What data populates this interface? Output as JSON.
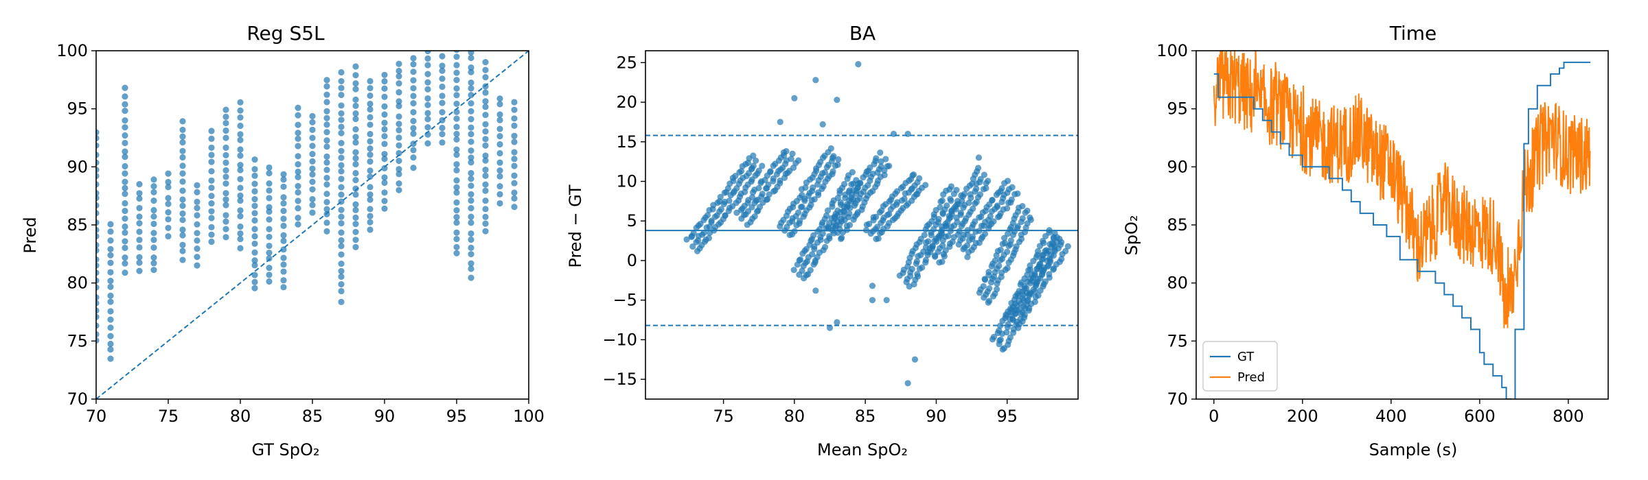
{
  "chart_data": [
    {
      "type": "scatter",
      "title": "Reg S5L",
      "xlabel": "GT SpO₂",
      "ylabel": "Pred",
      "xlim": [
        70,
        100
      ],
      "ylim": [
        70,
        100
      ],
      "xticks": [
        70,
        75,
        80,
        85,
        90,
        95,
        100
      ],
      "yticks": [
        70,
        75,
        80,
        85,
        90,
        95,
        100
      ],
      "grid": false,
      "reference_line": {
        "label": "",
        "x": [
          70,
          100
        ],
        "y": [
          70,
          100
        ],
        "style": "dashed"
      },
      "color": "#1f77b4",
      "columns": [
        {
          "x": 70,
          "y_min": 75,
          "y_max": 93
        },
        {
          "x": 71,
          "y_min": 73.5,
          "y_max": 85
        },
        {
          "x": 72,
          "y_min": 81,
          "y_max": 96.7
        },
        {
          "x": 73,
          "y_min": 81,
          "y_max": 88.5
        },
        {
          "x": 74,
          "y_min": 81,
          "y_max": 89
        },
        {
          "x": 75,
          "y_min": 84,
          "y_max": 89.5
        },
        {
          "x": 76,
          "y_min": 82,
          "y_max": 94
        },
        {
          "x": 77,
          "y_min": 81.5,
          "y_max": 88.5
        },
        {
          "x": 78,
          "y_min": 83.5,
          "y_max": 93
        },
        {
          "x": 79,
          "y_min": 84,
          "y_max": 95
        },
        {
          "x": 80,
          "y_min": 83,
          "y_max": 95.5
        },
        {
          "x": 81,
          "y_min": 79.5,
          "y_max": 90.5
        },
        {
          "x": 82,
          "y_min": 80,
          "y_max": 90
        },
        {
          "x": 83,
          "y_min": 79.5,
          "y_max": 89.5
        },
        {
          "x": 84,
          "y_min": 85,
          "y_max": 95
        },
        {
          "x": 85,
          "y_min": 86,
          "y_max": 94.5
        },
        {
          "x": 86,
          "y_min": 84.5,
          "y_max": 97.5
        },
        {
          "x": 87,
          "y_min": 78.5,
          "y_max": 98
        },
        {
          "x": 88,
          "y_min": 83,
          "y_max": 98.5
        },
        {
          "x": 89,
          "y_min": 84.5,
          "y_max": 97.5
        },
        {
          "x": 90,
          "y_min": 86.5,
          "y_max": 98
        },
        {
          "x": 91,
          "y_min": 88,
          "y_max": 99
        },
        {
          "x": 92,
          "y_min": 90,
          "y_max": 99.5
        },
        {
          "x": 93,
          "y_min": 92,
          "y_max": 100
        },
        {
          "x": 94,
          "y_min": 92,
          "y_max": 99.5
        },
        {
          "x": 95,
          "y_min": 82.5,
          "y_max": 100
        },
        {
          "x": 96,
          "y_min": 80.5,
          "y_max": 100
        },
        {
          "x": 97,
          "y_min": 84.5,
          "y_max": 99
        },
        {
          "x": 98,
          "y_min": 87,
          "y_max": 96
        },
        {
          "x": 99,
          "y_min": 86.5,
          "y_max": 95.5
        }
      ]
    },
    {
      "type": "scatter",
      "title": "BA",
      "xlabel": "Mean SpO₂",
      "ylabel": "Pred − GT",
      "xlim": [
        69.5,
        100
      ],
      "ylim": [
        -17.5,
        26.5
      ],
      "xticks": [
        75,
        80,
        85,
        90,
        95
      ],
      "yticks": [
        -15,
        -10,
        -5,
        0,
        5,
        10,
        15,
        20,
        25
      ],
      "grid": false,
      "bias": 3.8,
      "upper_loa": 15.8,
      "lower_loa": -8.2,
      "color": "#1f77b4",
      "diagonal_bands": [
        {
          "x_start": 72.5,
          "y_start": 2.5,
          "x_end": 77,
          "y_end": 13.2
        },
        {
          "x_start": 76,
          "y_start": 6,
          "x_end": 79.5,
          "y_end": 14
        },
        {
          "x_start": 79,
          "y_start": 4.5,
          "x_end": 82.5,
          "y_end": 14
        },
        {
          "x_start": 80,
          "y_start": -1,
          "x_end": 84,
          "y_end": 11
        },
        {
          "x_start": 82.5,
          "y_start": 4,
          "x_end": 86,
          "y_end": 13.5
        },
        {
          "x_start": 85,
          "y_start": 4,
          "x_end": 88.5,
          "y_end": 11
        },
        {
          "x_start": 87.5,
          "y_start": -2,
          "x_end": 91,
          "y_end": 9.5
        },
        {
          "x_start": 89.5,
          "y_start": 1,
          "x_end": 93,
          "y_end": 11.5
        },
        {
          "x_start": 91.5,
          "y_start": 2,
          "x_end": 95,
          "y_end": 10
        },
        {
          "x_start": 93,
          "y_start": -4,
          "x_end": 96,
          "y_end": 7
        },
        {
          "x_start": 94,
          "y_start": -10,
          "x_end": 98,
          "y_end": 4
        },
        {
          "x_start": 95,
          "y_start": -7,
          "x_end": 98.5,
          "y_end": 3
        }
      ],
      "outliers": [
        {
          "x": 80,
          "y": 20.5
        },
        {
          "x": 81.5,
          "y": 22.8
        },
        {
          "x": 84.5,
          "y": 24.8
        },
        {
          "x": 83,
          "y": 20.3
        },
        {
          "x": 82,
          "y": 17.2
        },
        {
          "x": 79,
          "y": 17.5
        },
        {
          "x": 88,
          "y": 16
        },
        {
          "x": 87,
          "y": 16
        },
        {
          "x": 83,
          "y": -7.8
        },
        {
          "x": 82.5,
          "y": -8.5
        },
        {
          "x": 88,
          "y": -15.5
        },
        {
          "x": 88.5,
          "y": -12.5
        },
        {
          "x": 85.5,
          "y": -5
        },
        {
          "x": 86.5,
          "y": -5
        },
        {
          "x": 85.5,
          "y": -3.2
        },
        {
          "x": 81.5,
          "y": -3.8
        },
        {
          "x": 93,
          "y": 13
        }
      ]
    },
    {
      "type": "line",
      "title": "Time",
      "xlabel": "Sample (s)",
      "ylabel": "SpO₂",
      "xlim": [
        -40,
        890
      ],
      "ylim": [
        70,
        100
      ],
      "xticks": [
        0,
        200,
        400,
        600,
        800
      ],
      "yticks": [
        70,
        75,
        80,
        85,
        90,
        95,
        100
      ],
      "grid": false,
      "legend_position": "lower-left",
      "series": [
        {
          "name": "GT",
          "color": "#1f77b4",
          "style": "step",
          "x": [
            0,
            10,
            20,
            90,
            110,
            130,
            150,
            170,
            200,
            260,
            290,
            310,
            330,
            360,
            390,
            420,
            460,
            480,
            500,
            520,
            540,
            560,
            580,
            600,
            610,
            630,
            650,
            660,
            670,
            680,
            700,
            710,
            730,
            760,
            780,
            790,
            850
          ],
          "y": [
            98,
            96,
            96,
            95,
            94,
            93,
            92,
            91,
            90,
            89,
            88,
            87,
            86,
            85,
            84,
            82,
            81,
            81,
            80,
            79,
            78,
            77,
            76,
            74,
            73,
            72,
            71,
            70,
            69.5,
            76,
            92,
            95,
            97,
            98,
            98.5,
            99,
            99
          ]
        },
        {
          "name": "Pred",
          "color": "#ff7f0e",
          "style": "noisy",
          "x": [
            0,
            50,
            100,
            150,
            200,
            250,
            300,
            330,
            360,
            400,
            440,
            460,
            480,
            520,
            560,
            600,
            640,
            660,
            680,
            700,
            730,
            760,
            800,
            850
          ],
          "y": [
            97,
            97,
            95.5,
            95,
            93,
            92,
            92,
            93,
            91,
            90,
            86,
            83,
            84,
            87,
            85,
            84.5,
            84,
            77,
            81,
            88,
            91,
            93,
            91,
            91
          ],
          "noise_amplitude": 3.5,
          "approx_samples": 850
        }
      ]
    }
  ]
}
